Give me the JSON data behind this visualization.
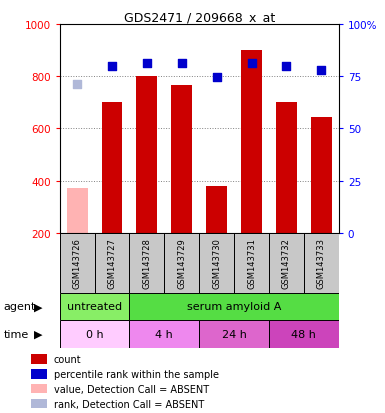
{
  "title": "GDS2471 / 209668_x_at",
  "samples": [
    "GSM143726",
    "GSM143727",
    "GSM143728",
    "GSM143729",
    "GSM143730",
    "GSM143731",
    "GSM143732",
    "GSM143733"
  ],
  "bar_values": [
    null,
    700,
    800,
    765,
    380,
    900,
    700,
    645
  ],
  "bar_absent": [
    370,
    null,
    null,
    null,
    null,
    null,
    null,
    null
  ],
  "dot_values": [
    null,
    840,
    850,
    850,
    795,
    850,
    840,
    825
  ],
  "dot_absent": [
    770,
    null,
    null,
    null,
    null,
    null,
    null,
    null
  ],
  "bar_color": "#cc0000",
  "bar_absent_color": "#ffb3b3",
  "dot_color": "#0000cc",
  "dot_absent_color": "#b0b8d8",
  "ylim": [
    200,
    1000
  ],
  "ylim_right": [
    0,
    100
  ],
  "yticks_left": [
    200,
    400,
    600,
    800,
    1000
  ],
  "yticks_right": [
    0,
    25,
    50,
    75,
    100
  ],
  "ytick_labels_left": [
    "200",
    "400",
    "600",
    "800",
    "1000"
  ],
  "ytick_labels_right": [
    "0",
    "25",
    "50",
    "75",
    "100%"
  ],
  "grid_values": [
    400,
    600,
    800
  ],
  "agent_labels": [
    {
      "text": "untreated",
      "start": 0,
      "end": 2,
      "color": "#88ee66"
    },
    {
      "text": "serum amyloid A",
      "start": 2,
      "end": 8,
      "color": "#55dd44"
    }
  ],
  "time_labels": [
    {
      "text": "0 h",
      "start": 0,
      "end": 2,
      "color": "#ffccff"
    },
    {
      "text": "4 h",
      "start": 2,
      "end": 4,
      "color": "#ee88ee"
    },
    {
      "text": "24 h",
      "start": 4,
      "end": 6,
      "color": "#dd66cc"
    },
    {
      "text": "48 h",
      "start": 6,
      "end": 8,
      "color": "#cc44bb"
    }
  ],
  "legend_items": [
    {
      "label": "count",
      "color": "#cc0000"
    },
    {
      "label": "percentile rank within the sample",
      "color": "#0000cc"
    },
    {
      "label": "value, Detection Call = ABSENT",
      "color": "#ffb3b3"
    },
    {
      "label": "rank, Detection Call = ABSENT",
      "color": "#b0b8d8"
    }
  ],
  "bar_width": 0.6,
  "dot_size": 40,
  "xticklabel_bg": "#c8c8c8",
  "bg_color": "#ffffff"
}
